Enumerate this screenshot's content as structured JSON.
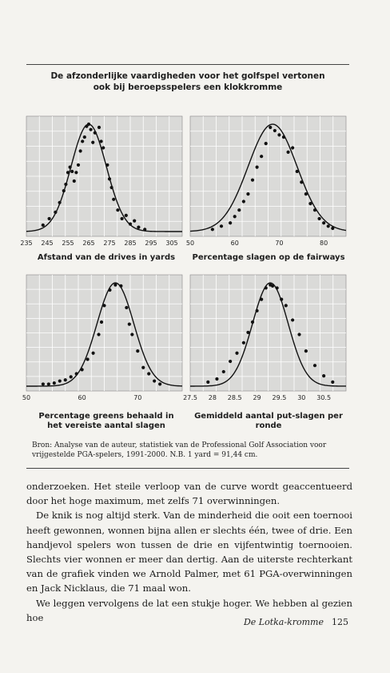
{
  "figure": {
    "title_line1": "De afzonderlijke vaardigheden voor het golfspel vertonen",
    "title_line2": "ook bij beroepsspelers een klokkromme"
  },
  "caption": "Bron: Analyse van de auteur, statistiek van de Professional Golf Association voor vrijgestelde PGA-spelers, 1991-2000. N.B. 1 yard = 91,44 cm.",
  "body": {
    "p1": "onderzoeken. Het steile verloop van de curve wordt geaccentueerd door het hoge maximum, met zelfs 71 overwinningen.",
    "p2": "De knik is nog altijd sterk. Van de minderheid die ooit een toernooi heeft gewonnen, wonnen bijna allen er slechts één, twee of drie. Een handjevol spelers won tussen de drie en vijfentwintig toernooien. Slechts vier wonnen er meer dan dertig. Aan de uiterste rechterkant van de grafiek vinden we Arnold Palmer, met 61 PGA-overwinningen en Jack Nicklaus, die 71 maal won.",
    "p3": "We leggen vervolgens de lat een stukje hoger. We hebben al gezien hoe"
  },
  "footer": {
    "running_title": "De Lotka-kromme",
    "page_number": "125"
  },
  "colors": {
    "panel": "#dadad8",
    "grid": "#ffffff",
    "ink": "#111111"
  },
  "chart_data": [
    {
      "type": "scatter",
      "xlabel": "Afstand van de drives in yards",
      "xlim": [
        235,
        310
      ],
      "xticks": [
        "235",
        "245",
        "255",
        "265",
        "275",
        "285",
        "295",
        "305"
      ],
      "curve": {
        "mean": 265,
        "sd": 8.5
      },
      "x": [
        243,
        246,
        249,
        251,
        253,
        254,
        255,
        256,
        257,
        258,
        259,
        260,
        261,
        262,
        263,
        264,
        265,
        266,
        267,
        268,
        270,
        271,
        272,
        274,
        275,
        276,
        277,
        279,
        281,
        283,
        285,
        287,
        289,
        292
      ],
      "y": [
        0.06,
        0.12,
        0.18,
        0.27,
        0.38,
        0.44,
        0.55,
        0.6,
        0.56,
        0.47,
        0.55,
        0.62,
        0.75,
        0.84,
        0.88,
        0.98,
        1.0,
        0.95,
        0.83,
        0.92,
        0.97,
        0.84,
        0.78,
        0.62,
        0.49,
        0.41,
        0.3,
        0.2,
        0.12,
        0.15,
        0.07,
        0.1,
        0.04,
        0.02
      ]
    },
    {
      "type": "scatter",
      "xlabel": "Percentage slagen op de fairways",
      "xlim": [
        50,
        85
      ],
      "xticks": [
        "50",
        "60",
        "70",
        "80"
      ],
      "curve": {
        "mean": 68.5,
        "sd": 5.5
      },
      "x": [
        55,
        57,
        59,
        60,
        61,
        62,
        63,
        64,
        65,
        66,
        67,
        68,
        69,
        70,
        71,
        72,
        73,
        74,
        75,
        76,
        77,
        78,
        79,
        80,
        81,
        82
      ],
      "y": [
        0.02,
        0.05,
        0.08,
        0.14,
        0.2,
        0.28,
        0.35,
        0.48,
        0.6,
        0.7,
        0.82,
        0.97,
        0.94,
        0.9,
        0.88,
        0.74,
        0.78,
        0.56,
        0.46,
        0.35,
        0.26,
        0.2,
        0.12,
        0.08,
        0.05,
        0.03
      ]
    },
    {
      "type": "scatter",
      "xlabel": "Percentage greens behaald in het vereiste aantal slagen",
      "xlim": [
        50,
        78
      ],
      "xticks": [
        "50",
        "60",
        "70"
      ],
      "curve": {
        "mean": 66,
        "sd": 3.3
      },
      "x": [
        53,
        54,
        55,
        56,
        57,
        58,
        59,
        60,
        61,
        62,
        63,
        63.5,
        64,
        65,
        66,
        67,
        68,
        68.5,
        69,
        70,
        71,
        72,
        73,
        74
      ],
      "y": [
        0.02,
        0.02,
        0.03,
        0.05,
        0.06,
        0.09,
        0.12,
        0.16,
        0.26,
        0.32,
        0.5,
        0.62,
        0.78,
        0.93,
        0.98,
        0.97,
        0.76,
        0.6,
        0.5,
        0.34,
        0.18,
        0.12,
        0.05,
        0.02
      ]
    },
    {
      "type": "scatter",
      "xlabel": "Gemiddeld aantal put-slagen per ronde",
      "xlim": [
        27.5,
        31.0
      ],
      "xticks": [
        "27.5",
        "28",
        "28.5",
        "29",
        "29.5",
        "30",
        "30.5"
      ],
      "curve": {
        "mean": 29.3,
        "sd": 0.4
      },
      "x": [
        27.9,
        28.1,
        28.25,
        28.4,
        28.55,
        28.7,
        28.8,
        28.9,
        29.0,
        29.1,
        29.2,
        29.3,
        29.35,
        29.45,
        29.55,
        29.65,
        29.8,
        29.95,
        30.1,
        30.3,
        30.5,
        30.7
      ],
      "y": [
        0.04,
        0.07,
        0.14,
        0.24,
        0.32,
        0.42,
        0.52,
        0.62,
        0.73,
        0.84,
        0.95,
        0.98,
        0.97,
        0.95,
        0.84,
        0.78,
        0.64,
        0.5,
        0.34,
        0.2,
        0.1,
        0.04
      ]
    }
  ]
}
